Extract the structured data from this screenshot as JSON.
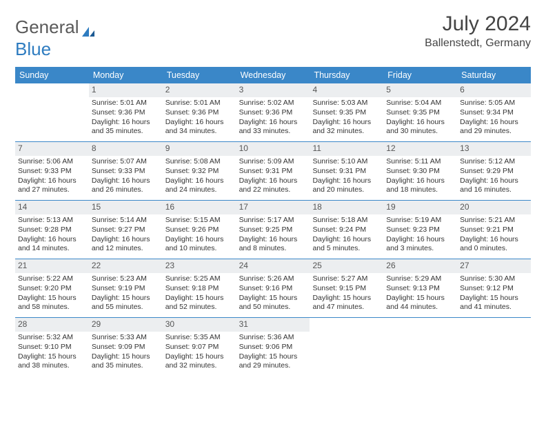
{
  "brand": {
    "part1": "General",
    "part2": "Blue"
  },
  "title": "July 2024",
  "location": "Ballenstedt, Germany",
  "colors": {
    "header_bg": "#3a87c8",
    "header_text": "#ffffff",
    "daynum_bg": "#eceef0",
    "week_border": "#3a87c8",
    "logo_gray": "#5a5a5a",
    "logo_blue": "#2e7cc0"
  },
  "weekdays": [
    "Sunday",
    "Monday",
    "Tuesday",
    "Wednesday",
    "Thursday",
    "Friday",
    "Saturday"
  ],
  "weeks": [
    [
      {
        "n": "",
        "sr": "",
        "ss": "",
        "dl": ""
      },
      {
        "n": "1",
        "sr": "Sunrise: 5:01 AM",
        "ss": "Sunset: 9:36 PM",
        "dl": "Daylight: 16 hours and 35 minutes."
      },
      {
        "n": "2",
        "sr": "Sunrise: 5:01 AM",
        "ss": "Sunset: 9:36 PM",
        "dl": "Daylight: 16 hours and 34 minutes."
      },
      {
        "n": "3",
        "sr": "Sunrise: 5:02 AM",
        "ss": "Sunset: 9:36 PM",
        "dl": "Daylight: 16 hours and 33 minutes."
      },
      {
        "n": "4",
        "sr": "Sunrise: 5:03 AM",
        "ss": "Sunset: 9:35 PM",
        "dl": "Daylight: 16 hours and 32 minutes."
      },
      {
        "n": "5",
        "sr": "Sunrise: 5:04 AM",
        "ss": "Sunset: 9:35 PM",
        "dl": "Daylight: 16 hours and 30 minutes."
      },
      {
        "n": "6",
        "sr": "Sunrise: 5:05 AM",
        "ss": "Sunset: 9:34 PM",
        "dl": "Daylight: 16 hours and 29 minutes."
      }
    ],
    [
      {
        "n": "7",
        "sr": "Sunrise: 5:06 AM",
        "ss": "Sunset: 9:33 PM",
        "dl": "Daylight: 16 hours and 27 minutes."
      },
      {
        "n": "8",
        "sr": "Sunrise: 5:07 AM",
        "ss": "Sunset: 9:33 PM",
        "dl": "Daylight: 16 hours and 26 minutes."
      },
      {
        "n": "9",
        "sr": "Sunrise: 5:08 AM",
        "ss": "Sunset: 9:32 PM",
        "dl": "Daylight: 16 hours and 24 minutes."
      },
      {
        "n": "10",
        "sr": "Sunrise: 5:09 AM",
        "ss": "Sunset: 9:31 PM",
        "dl": "Daylight: 16 hours and 22 minutes."
      },
      {
        "n": "11",
        "sr": "Sunrise: 5:10 AM",
        "ss": "Sunset: 9:31 PM",
        "dl": "Daylight: 16 hours and 20 minutes."
      },
      {
        "n": "12",
        "sr": "Sunrise: 5:11 AM",
        "ss": "Sunset: 9:30 PM",
        "dl": "Daylight: 16 hours and 18 minutes."
      },
      {
        "n": "13",
        "sr": "Sunrise: 5:12 AM",
        "ss": "Sunset: 9:29 PM",
        "dl": "Daylight: 16 hours and 16 minutes."
      }
    ],
    [
      {
        "n": "14",
        "sr": "Sunrise: 5:13 AM",
        "ss": "Sunset: 9:28 PM",
        "dl": "Daylight: 16 hours and 14 minutes."
      },
      {
        "n": "15",
        "sr": "Sunrise: 5:14 AM",
        "ss": "Sunset: 9:27 PM",
        "dl": "Daylight: 16 hours and 12 minutes."
      },
      {
        "n": "16",
        "sr": "Sunrise: 5:15 AM",
        "ss": "Sunset: 9:26 PM",
        "dl": "Daylight: 16 hours and 10 minutes."
      },
      {
        "n": "17",
        "sr": "Sunrise: 5:17 AM",
        "ss": "Sunset: 9:25 PM",
        "dl": "Daylight: 16 hours and 8 minutes."
      },
      {
        "n": "18",
        "sr": "Sunrise: 5:18 AM",
        "ss": "Sunset: 9:24 PM",
        "dl": "Daylight: 16 hours and 5 minutes."
      },
      {
        "n": "19",
        "sr": "Sunrise: 5:19 AM",
        "ss": "Sunset: 9:23 PM",
        "dl": "Daylight: 16 hours and 3 minutes."
      },
      {
        "n": "20",
        "sr": "Sunrise: 5:21 AM",
        "ss": "Sunset: 9:21 PM",
        "dl": "Daylight: 16 hours and 0 minutes."
      }
    ],
    [
      {
        "n": "21",
        "sr": "Sunrise: 5:22 AM",
        "ss": "Sunset: 9:20 PM",
        "dl": "Daylight: 15 hours and 58 minutes."
      },
      {
        "n": "22",
        "sr": "Sunrise: 5:23 AM",
        "ss": "Sunset: 9:19 PM",
        "dl": "Daylight: 15 hours and 55 minutes."
      },
      {
        "n": "23",
        "sr": "Sunrise: 5:25 AM",
        "ss": "Sunset: 9:18 PM",
        "dl": "Daylight: 15 hours and 52 minutes."
      },
      {
        "n": "24",
        "sr": "Sunrise: 5:26 AM",
        "ss": "Sunset: 9:16 PM",
        "dl": "Daylight: 15 hours and 50 minutes."
      },
      {
        "n": "25",
        "sr": "Sunrise: 5:27 AM",
        "ss": "Sunset: 9:15 PM",
        "dl": "Daylight: 15 hours and 47 minutes."
      },
      {
        "n": "26",
        "sr": "Sunrise: 5:29 AM",
        "ss": "Sunset: 9:13 PM",
        "dl": "Daylight: 15 hours and 44 minutes."
      },
      {
        "n": "27",
        "sr": "Sunrise: 5:30 AM",
        "ss": "Sunset: 9:12 PM",
        "dl": "Daylight: 15 hours and 41 minutes."
      }
    ],
    [
      {
        "n": "28",
        "sr": "Sunrise: 5:32 AM",
        "ss": "Sunset: 9:10 PM",
        "dl": "Daylight: 15 hours and 38 minutes."
      },
      {
        "n": "29",
        "sr": "Sunrise: 5:33 AM",
        "ss": "Sunset: 9:09 PM",
        "dl": "Daylight: 15 hours and 35 minutes."
      },
      {
        "n": "30",
        "sr": "Sunrise: 5:35 AM",
        "ss": "Sunset: 9:07 PM",
        "dl": "Daylight: 15 hours and 32 minutes."
      },
      {
        "n": "31",
        "sr": "Sunrise: 5:36 AM",
        "ss": "Sunset: 9:06 PM",
        "dl": "Daylight: 15 hours and 29 minutes."
      },
      {
        "n": "",
        "sr": "",
        "ss": "",
        "dl": ""
      },
      {
        "n": "",
        "sr": "",
        "ss": "",
        "dl": ""
      },
      {
        "n": "",
        "sr": "",
        "ss": "",
        "dl": ""
      }
    ]
  ]
}
